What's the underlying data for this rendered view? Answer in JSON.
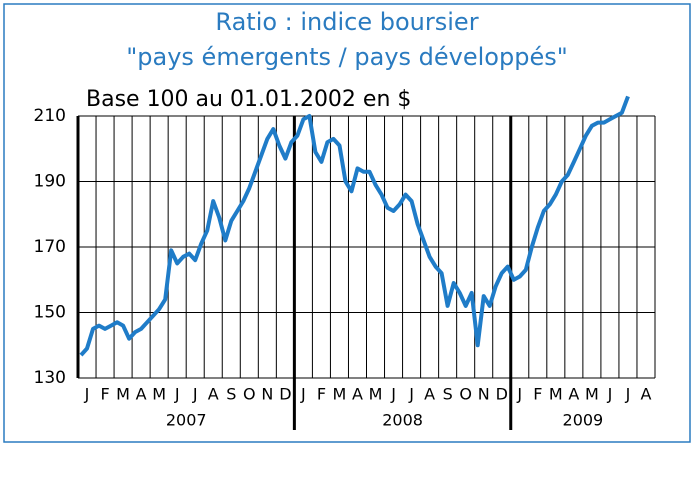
{
  "chart_data": {
    "type": "line",
    "title": [
      "Ratio : indice boursier",
      "\"pays émergents / pays développés\""
    ],
    "subtitle": "Base 100 au 01.01.2002 en $",
    "months": [
      "J",
      "F",
      "M",
      "A",
      "M",
      "J",
      "J",
      "A",
      "S",
      "O",
      "N",
      "D",
      "J",
      "F",
      "M",
      "A",
      "M",
      "J",
      "J",
      "A",
      "S",
      "O",
      "N",
      "D",
      "J",
      "F",
      "M",
      "A",
      "M",
      "J",
      "J",
      "A"
    ],
    "years": [
      "2007",
      "2008",
      "2009"
    ],
    "values": [
      137,
      139,
      145,
      146,
      145,
      146,
      147,
      146,
      142,
      144,
      145,
      147,
      149,
      151,
      154,
      169,
      165,
      167,
      168,
      166,
      171,
      175,
      184,
      179,
      172,
      178,
      181,
      184,
      188,
      193,
      198,
      203,
      206,
      201,
      197,
      202,
      204,
      209,
      210,
      199,
      196,
      202,
      203,
      201,
      190,
      187,
      194,
      193,
      193,
      189,
      186,
      182,
      181,
      183,
      186,
      184,
      177,
      172,
      167,
      164,
      162,
      152,
      159,
      156,
      152,
      156,
      140,
      155,
      152,
      158,
      162,
      164,
      160,
      161,
      163,
      170,
      176,
      181,
      183,
      186,
      190,
      192,
      196,
      200,
      204,
      207,
      208,
      208,
      209,
      210,
      211,
      216
    ],
    "color": "#1f7cc8",
    "ylim": [
      130,
      210
    ],
    "yticks": [
      130,
      150,
      170,
      190,
      210
    ],
    "grid": true
  }
}
